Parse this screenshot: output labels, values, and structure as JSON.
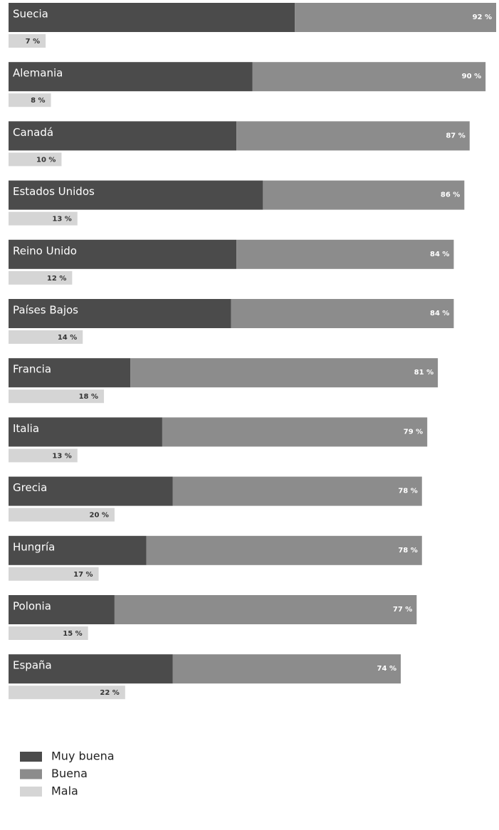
{
  "chart_data": {
    "type": "bar",
    "categories": [
      "Suecia",
      "Alemania",
      "Canadá",
      "Estados Unidos",
      "Reino Unido",
      "Países Bajos",
      "Francia",
      "Italia",
      "Grecia",
      "Hungría",
      "Polonia",
      "España"
    ],
    "series": [
      {
        "name": "Muy buena",
        "color": "#4b4b4b",
        "values": [
          54,
          46,
          43,
          48,
          43,
          42,
          23,
          29,
          31,
          26,
          20,
          31
        ]
      },
      {
        "name": "Buena",
        "color": "#8c8c8c",
        "values": [
          38,
          44,
          44,
          38,
          41,
          42,
          58,
          50,
          47,
          52,
          57,
          43
        ]
      },
      {
        "name": "Mala",
        "color": "#d5d5d5",
        "values": [
          7,
          8,
          10,
          13,
          12,
          14,
          18,
          13,
          20,
          17,
          15,
          22
        ],
        "value_labels": [
          "7 %",
          "8 %",
          "10 %",
          "13 %",
          "12 %",
          "14 %",
          "18 %",
          "13 %",
          "20 %",
          "17 %",
          "15 %",
          "22 %"
        ]
      }
    ],
    "totals": [
      92,
      90,
      87,
      86,
      84,
      84,
      81,
      79,
      78,
      78,
      77,
      74
    ],
    "total_labels": [
      "92 %",
      "90 %",
      "87 %",
      "86 %",
      "84 %",
      "84 %",
      "81 %",
      "79 %",
      "78 %",
      "78 %",
      "77 %",
      "74 %"
    ],
    "xlim": [
      0,
      92
    ]
  }
}
